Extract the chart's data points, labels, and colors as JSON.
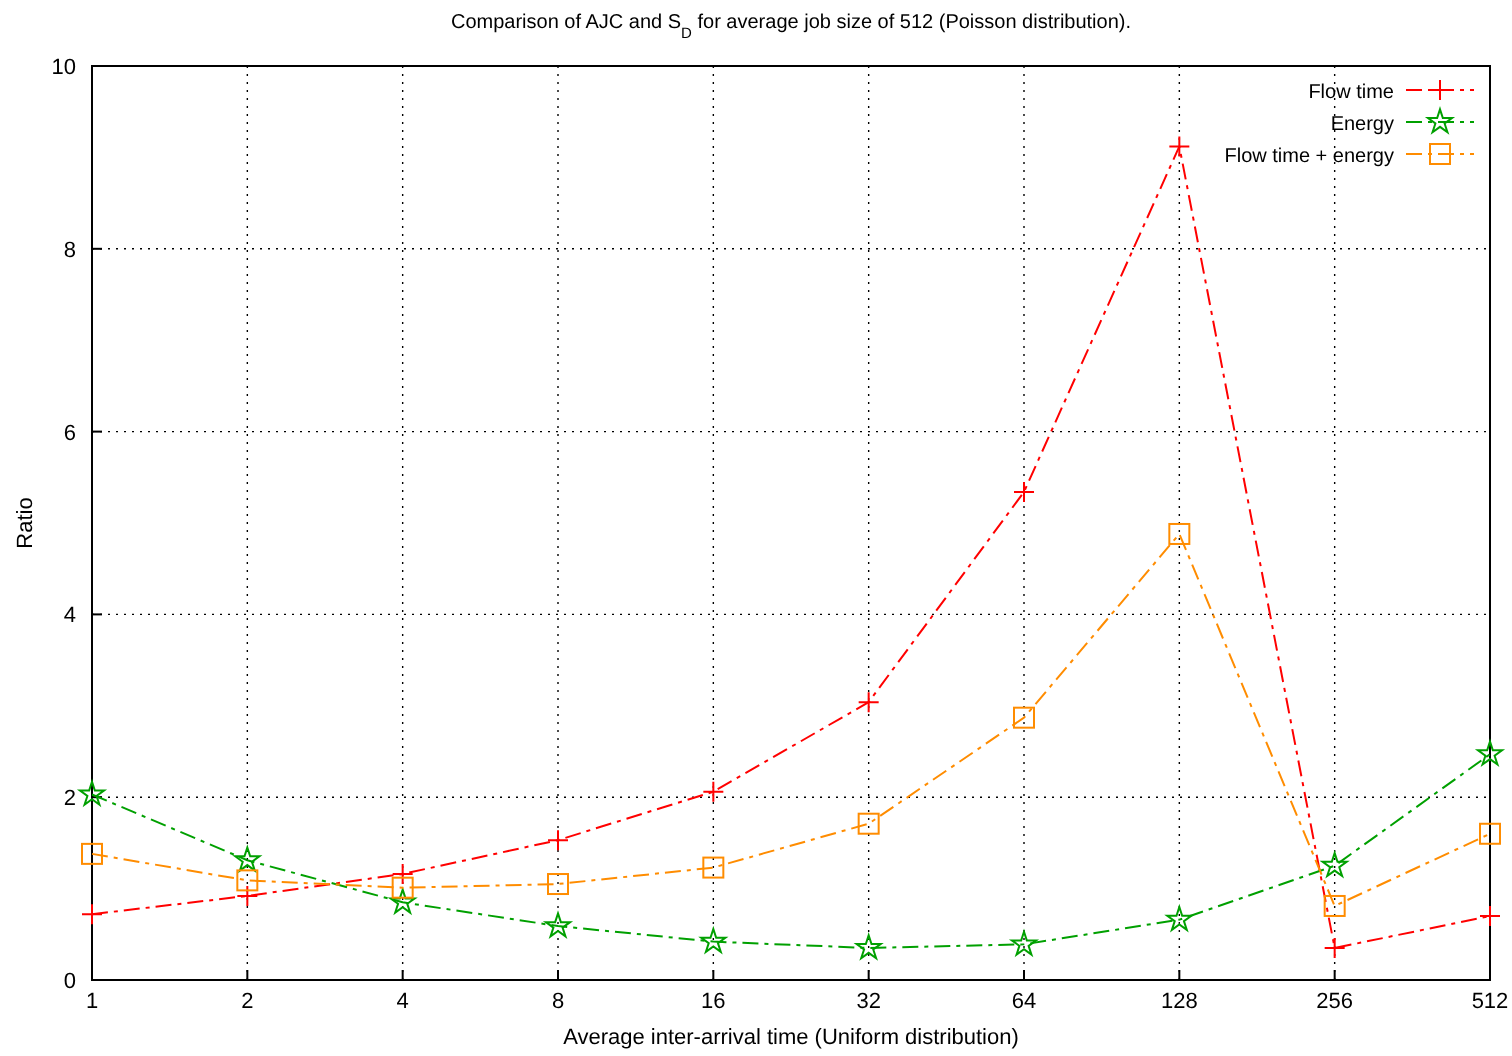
{
  "chart_data": {
    "type": "line",
    "title": "Comparison of AJC and S$_{D}$ for average job size of 512 (Poisson distribution).",
    "xlabel": "Average inter-arrival time (Uniform distribution)",
    "ylabel": "Ratio",
    "x": [
      1,
      2,
      4,
      8,
      16,
      32,
      64,
      128,
      256,
      512
    ],
    "log": "x",
    "xlim": [
      1,
      512
    ],
    "xticks": [
      1,
      2,
      4,
      8,
      16,
      32,
      64,
      128,
      256,
      512
    ],
    "ylim": [
      0,
      10
    ],
    "yticks": [
      0,
      2,
      4,
      6,
      8,
      10
    ],
    "grid": true,
    "legend": "top right",
    "line_style": "dashed",
    "series": [
      {
        "name": "Flow time",
        "color": "#ff0000",
        "marker": "cross",
        "values": [
          0.72,
          0.92,
          1.16,
          1.53,
          2.06,
          3.04,
          5.34,
          9.12,
          0.35,
          0.7
        ]
      },
      {
        "name": "Energy",
        "color": "#00a000",
        "marker": "star",
        "values": [
          2.03,
          1.31,
          0.85,
          0.59,
          0.42,
          0.35,
          0.39,
          0.66,
          1.25,
          2.47
        ]
      },
      {
        "name": "Flow time + energy",
        "color": "#ff8c00",
        "marker": "square",
        "values": [
          1.38,
          1.09,
          1.01,
          1.05,
          1.23,
          1.71,
          2.87,
          4.88,
          0.81,
          1.6
        ]
      }
    ]
  }
}
